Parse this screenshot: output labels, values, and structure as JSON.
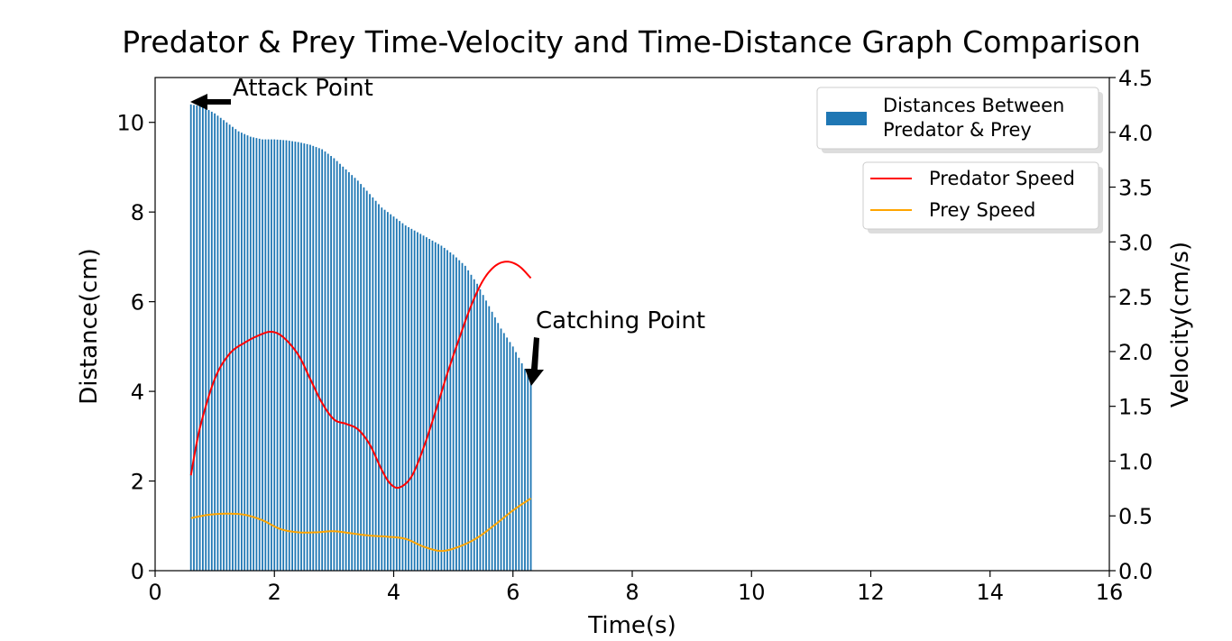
{
  "chart_data": {
    "type": "bar+line",
    "title": "Predator & Prey Time-Velocity and Time-Distance Graph Comparison",
    "xlabel": "Time(s)",
    "ylabel_left": "Distance(cm)",
    "ylabel_right": "Velocity(cm/s)",
    "xlim": [
      0,
      16
    ],
    "ylim_left": [
      0,
      11
    ],
    "ylim_right": [
      0,
      4.5
    ],
    "x_ticks": [
      0,
      2,
      4,
      6,
      8,
      10,
      12,
      14,
      16
    ],
    "y_left_ticks": [
      0,
      2,
      4,
      6,
      8,
      10
    ],
    "y_right_ticks": [
      "0.0",
      "0.5",
      "1.0",
      "1.5",
      "2.0",
      "2.5",
      "3.0",
      "3.5",
      "4.0",
      "4.5"
    ],
    "bar_series": {
      "name": "Distances Between Predator & Prey",
      "color": "#1f77b4",
      "time_start": 0.6,
      "time_end": 6.3,
      "time_step": 0.05,
      "distance_keypoints": {
        "t": [
          0.6,
          0.8,
          1.0,
          1.2,
          1.4,
          1.6,
          1.8,
          2.0,
          2.2,
          2.4,
          2.6,
          2.8,
          3.0,
          3.2,
          3.4,
          3.6,
          3.8,
          4.0,
          4.2,
          4.4,
          4.6,
          4.8,
          5.0,
          5.2,
          5.4,
          5.6,
          5.8,
          6.0,
          6.2,
          6.3
        ],
        "d": [
          10.4,
          10.35,
          10.2,
          10.0,
          9.8,
          9.68,
          9.62,
          9.62,
          9.6,
          9.56,
          9.5,
          9.4,
          9.2,
          8.95,
          8.7,
          8.4,
          8.1,
          7.9,
          7.7,
          7.55,
          7.4,
          7.25,
          7.05,
          6.8,
          6.4,
          5.9,
          5.4,
          5.0,
          4.5,
          4.3
        ]
      }
    },
    "line_series": [
      {
        "name": "Predator Speed",
        "color": "#ff0000",
        "t": [
          0.6,
          0.75,
          1.0,
          1.25,
          1.5,
          1.75,
          1.95,
          2.15,
          2.4,
          2.6,
          2.8,
          3.0,
          3.2,
          3.4,
          3.6,
          3.8,
          3.95,
          4.1,
          4.3,
          4.5,
          4.7,
          4.9,
          5.1,
          5.3,
          5.5,
          5.7,
          5.9,
          6.1,
          6.3
        ],
        "v": [
          0.87,
          1.3,
          1.75,
          1.98,
          2.08,
          2.15,
          2.18,
          2.13,
          1.97,
          1.75,
          1.53,
          1.38,
          1.34,
          1.29,
          1.15,
          0.92,
          0.79,
          0.76,
          0.86,
          1.12,
          1.45,
          1.8,
          2.12,
          2.42,
          2.65,
          2.78,
          2.82,
          2.78,
          2.67
        ]
      },
      {
        "name": "Prey Speed",
        "color": "#ffa500",
        "t": [
          0.6,
          0.9,
          1.2,
          1.5,
          1.8,
          2.1,
          2.4,
          2.7,
          3.0,
          3.3,
          3.6,
          3.9,
          4.2,
          4.5,
          4.8,
          5.1,
          5.4,
          5.7,
          6.0,
          6.3
        ],
        "v": [
          0.48,
          0.51,
          0.52,
          0.51,
          0.46,
          0.38,
          0.35,
          0.35,
          0.36,
          0.34,
          0.32,
          0.31,
          0.29,
          0.22,
          0.18,
          0.22,
          0.3,
          0.42,
          0.55,
          0.66
        ]
      }
    ],
    "annotations": [
      {
        "text": "Attack Point",
        "x": 0.6,
        "y": 10.4,
        "axis": "distance"
      },
      {
        "text": "Catching Point",
        "x": 6.3,
        "y": 4.1,
        "axis": "distance"
      }
    ],
    "legends": [
      {
        "position": "top-right",
        "entries": [
          "Distances Between Predator & Prey"
        ]
      },
      {
        "position": "upper-right",
        "entries": [
          "Predator Speed",
          "Prey Speed"
        ]
      }
    ]
  }
}
